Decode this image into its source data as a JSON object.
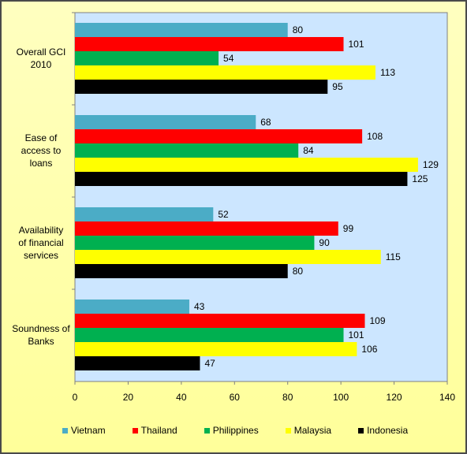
{
  "chart_data": {
    "type": "bar",
    "orientation": "horizontal",
    "categories": [
      "Overall GCI 2010",
      "Ease of access to loans",
      "Availability of financial services",
      "Soundness of Banks"
    ],
    "series": [
      {
        "name": "Vietnam",
        "color": "#4bacc6",
        "values": [
          80,
          68,
          52,
          43
        ]
      },
      {
        "name": "Thailand",
        "color": "#ff0000",
        "values": [
          101,
          108,
          99,
          109
        ]
      },
      {
        "name": "Philippines",
        "color": "#00b050",
        "values": [
          54,
          84,
          90,
          101
        ]
      },
      {
        "name": "Malaysia",
        "color": "#ffff00",
        "values": [
          113,
          129,
          115,
          106
        ]
      },
      {
        "name": "Indonesia",
        "color": "#000000",
        "values": [
          95,
          125,
          80,
          47
        ]
      }
    ],
    "xlim": [
      0,
      140
    ],
    "xticks": [
      "0",
      "20",
      "40",
      "60",
      "80",
      "100",
      "120",
      "140"
    ],
    "title": "",
    "xlabel": "",
    "ylabel": "",
    "legend_position": "bottom",
    "plot_background": "#cce6ff"
  }
}
